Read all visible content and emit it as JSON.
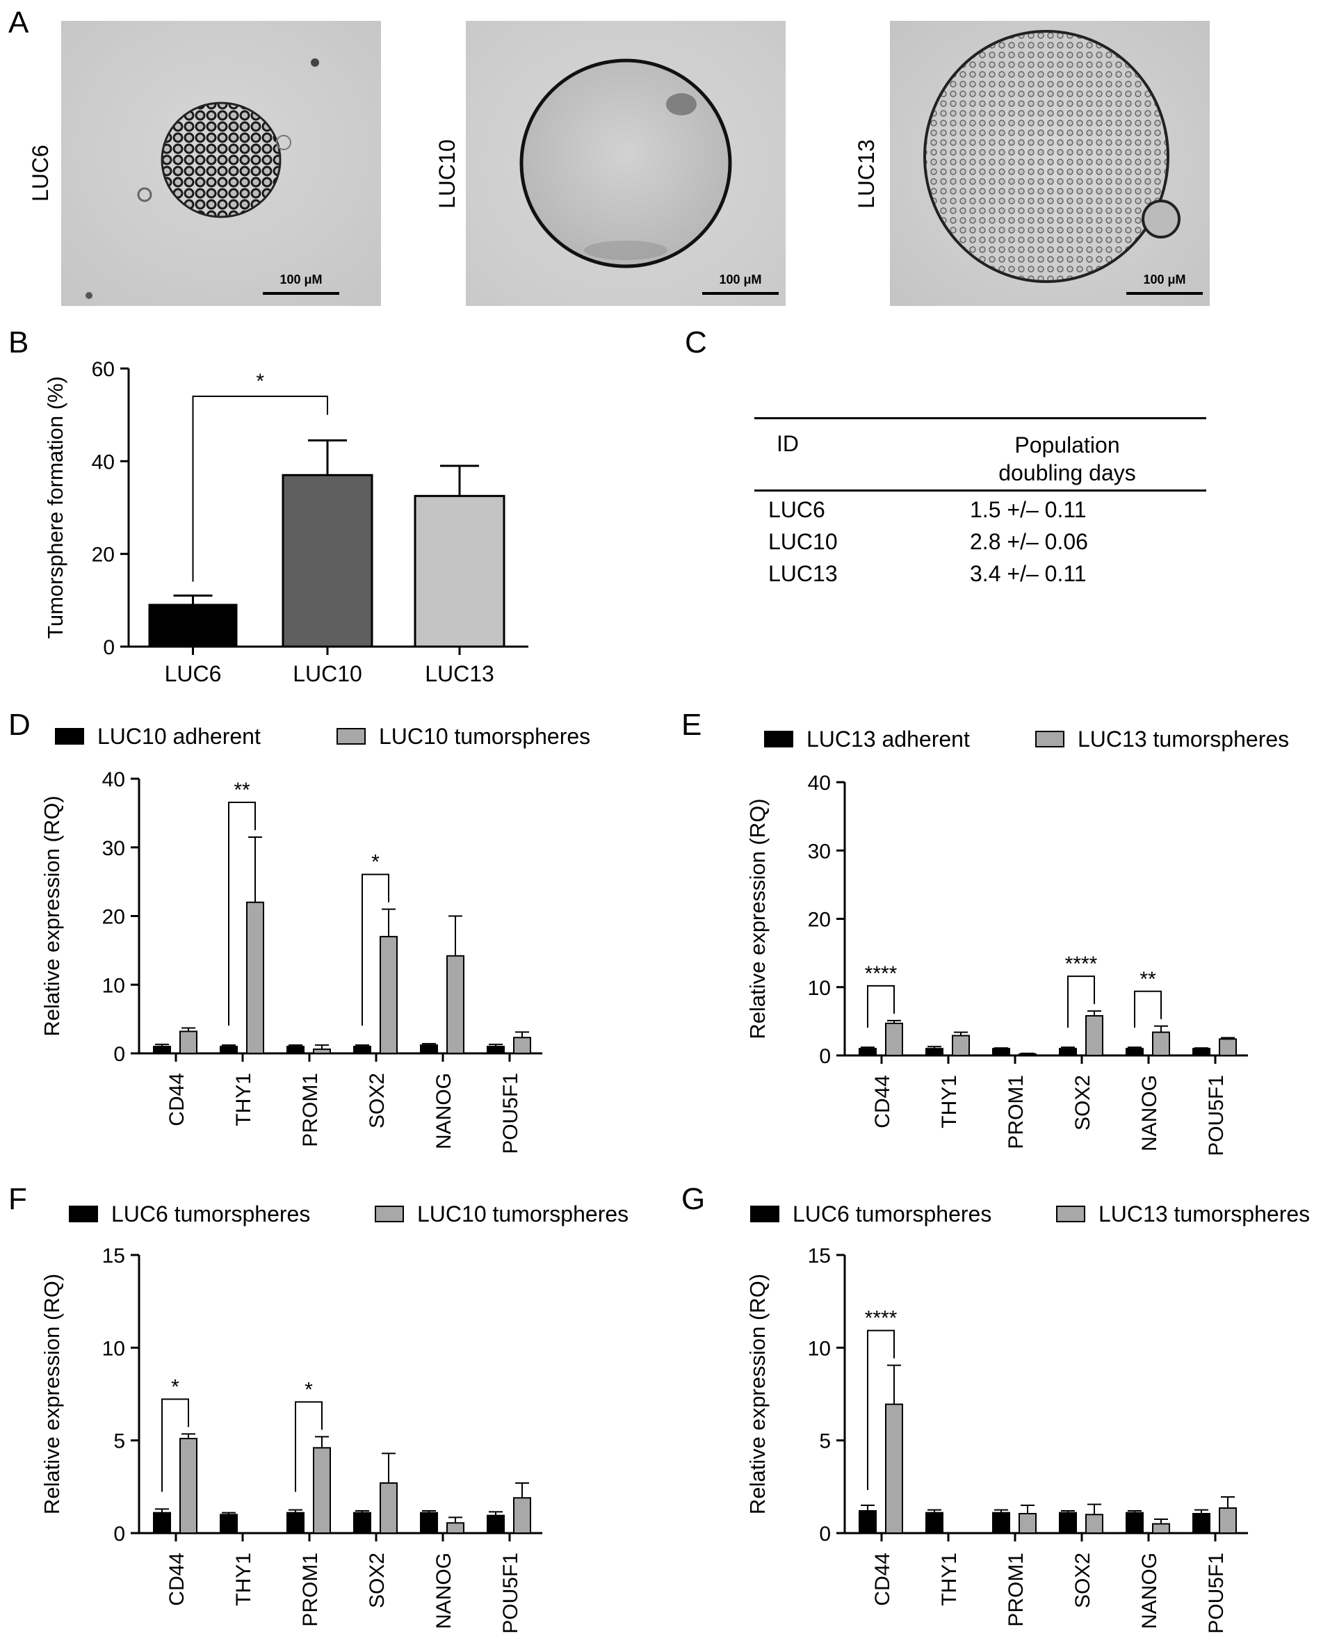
{
  "panel_letters": {
    "A": "A",
    "B": "B",
    "C": "C",
    "D": "D",
    "E": "E",
    "F": "F",
    "G": "G"
  },
  "photos": [
    {
      "label": "LUC6",
      "scale_bar": "100 μM"
    },
    {
      "label": "LUC10",
      "scale_bar": "100 μM"
    },
    {
      "label": "LUC13",
      "scale_bar": "100 μM"
    }
  ],
  "colors": {
    "black": "#000000",
    "dark_gray": "#5f5f5f",
    "light_gray": "#c4c4c4",
    "legend_gray": "#a8a8a8"
  },
  "table": {
    "header_id": "ID",
    "header_pd_line1": "Population",
    "header_pd_line2": "doubling days",
    "rows": [
      {
        "id": "LUC6",
        "value": "1.5 +/– 0.11"
      },
      {
        "id": "LUC10",
        "value": "2.8 +/– 0.06"
      },
      {
        "id": "LUC13",
        "value": "3.4 +/– 0.11"
      }
    ]
  },
  "chart_data": [
    {
      "panel": "B",
      "type": "bar",
      "ylabel": "Tumorsphere formation (%)",
      "ylim": [
        0,
        60
      ],
      "yticks": [
        0,
        20,
        40,
        60
      ],
      "categories": [
        "LUC6",
        "LUC10",
        "LUC13"
      ],
      "values": [
        9,
        37,
        32.5
      ],
      "errors": [
        2,
        7.5,
        6.5
      ],
      "bar_colors": [
        "#000000",
        "#5f5f5f",
        "#c4c4c4"
      ],
      "significance": [
        {
          "from": 0,
          "to": 1,
          "label": "*"
        }
      ]
    },
    {
      "panel": "D",
      "type": "bar",
      "ylabel": "Relative expression (RQ)",
      "ylim": [
        0,
        40
      ],
      "yticks": [
        0,
        10,
        20,
        30,
        40
      ],
      "categories": [
        "CD44",
        "THY1",
        "PROM1",
        "SOX2",
        "NANOG",
        "POU5F1"
      ],
      "series": [
        {
          "name": "LUC10 adherent",
          "values": [
            1,
            1,
            1,
            1,
            1.2,
            1
          ],
          "errors": [
            0.3,
            0.2,
            0.2,
            0.2,
            0.2,
            0.3
          ]
        },
        {
          "name": "LUC10 tumorspheres",
          "values": [
            3.2,
            22,
            0.6,
            17,
            14.2,
            2.3
          ],
          "errors": [
            0.5,
            9.5,
            0.6,
            4,
            5.8,
            0.8
          ]
        }
      ],
      "significance": [
        {
          "index": 1,
          "label": "**"
        },
        {
          "index": 3,
          "label": "*"
        }
      ]
    },
    {
      "panel": "E",
      "type": "bar",
      "ylabel": "Relative expression (RQ)",
      "ylim": [
        0,
        40
      ],
      "yticks": [
        0,
        10,
        20,
        30,
        40
      ],
      "categories": [
        "CD44",
        "THY1",
        "PROM1",
        "SOX2",
        "NANOG",
        "POU5F1"
      ],
      "series": [
        {
          "name": "LUC13 adherent",
          "values": [
            1,
            1,
            1,
            1,
            1,
            1
          ],
          "errors": [
            0.2,
            0.3,
            0.1,
            0.2,
            0.2,
            0.1
          ]
        },
        {
          "name": "LUC13 tumorspheres",
          "values": [
            4.7,
            2.9,
            0.2,
            5.8,
            3.4,
            2.4
          ],
          "errors": [
            0.4,
            0.5,
            0.1,
            0.7,
            0.9,
            0.2
          ]
        }
      ],
      "significance": [
        {
          "index": 0,
          "label": "****"
        },
        {
          "index": 3,
          "label": "****"
        },
        {
          "index": 4,
          "label": "**"
        }
      ]
    },
    {
      "panel": "F",
      "type": "bar",
      "ylabel": "Relative expression (RQ)",
      "ylim": [
        0,
        15
      ],
      "yticks": [
        0,
        5,
        10,
        15
      ],
      "categories": [
        "CD44",
        "THY1",
        "PROM1",
        "SOX2",
        "NANOG",
        "POU5F1"
      ],
      "series": [
        {
          "name": "LUC6 tumorspheres",
          "values": [
            1.1,
            1,
            1.1,
            1.1,
            1.1,
            0.95
          ],
          "errors": [
            0.2,
            0.1,
            0.15,
            0.1,
            0.1,
            0.2
          ]
        },
        {
          "name": "LUC10 tumorspheres",
          "values": [
            5.1,
            0,
            4.6,
            2.7,
            0.55,
            1.9
          ],
          "errors": [
            0.25,
            0,
            0.6,
            1.6,
            0.3,
            0.8
          ]
        }
      ],
      "significance": [
        {
          "index": 0,
          "label": "*"
        },
        {
          "index": 2,
          "label": "*"
        }
      ]
    },
    {
      "panel": "G",
      "type": "bar",
      "ylabel": "Relative expression (RQ)",
      "ylim": [
        0,
        15
      ],
      "yticks": [
        0,
        5,
        10,
        15
      ],
      "categories": [
        "CD44",
        "THY1",
        "PROM1",
        "SOX2",
        "NANOG",
        "POU5F1"
      ],
      "series": [
        {
          "name": "LUC6 tumorspheres",
          "values": [
            1.2,
            1.1,
            1.1,
            1.1,
            1.1,
            1.05
          ],
          "errors": [
            0.3,
            0.15,
            0.15,
            0.1,
            0.1,
            0.2
          ]
        },
        {
          "name": "LUC13 tumorspheres",
          "values": [
            6.95,
            0,
            1.05,
            1,
            0.5,
            1.35
          ],
          "errors": [
            2.1,
            0,
            0.45,
            0.55,
            0.25,
            0.6
          ]
        }
      ],
      "significance": [
        {
          "index": 0,
          "label": "****"
        }
      ]
    }
  ]
}
